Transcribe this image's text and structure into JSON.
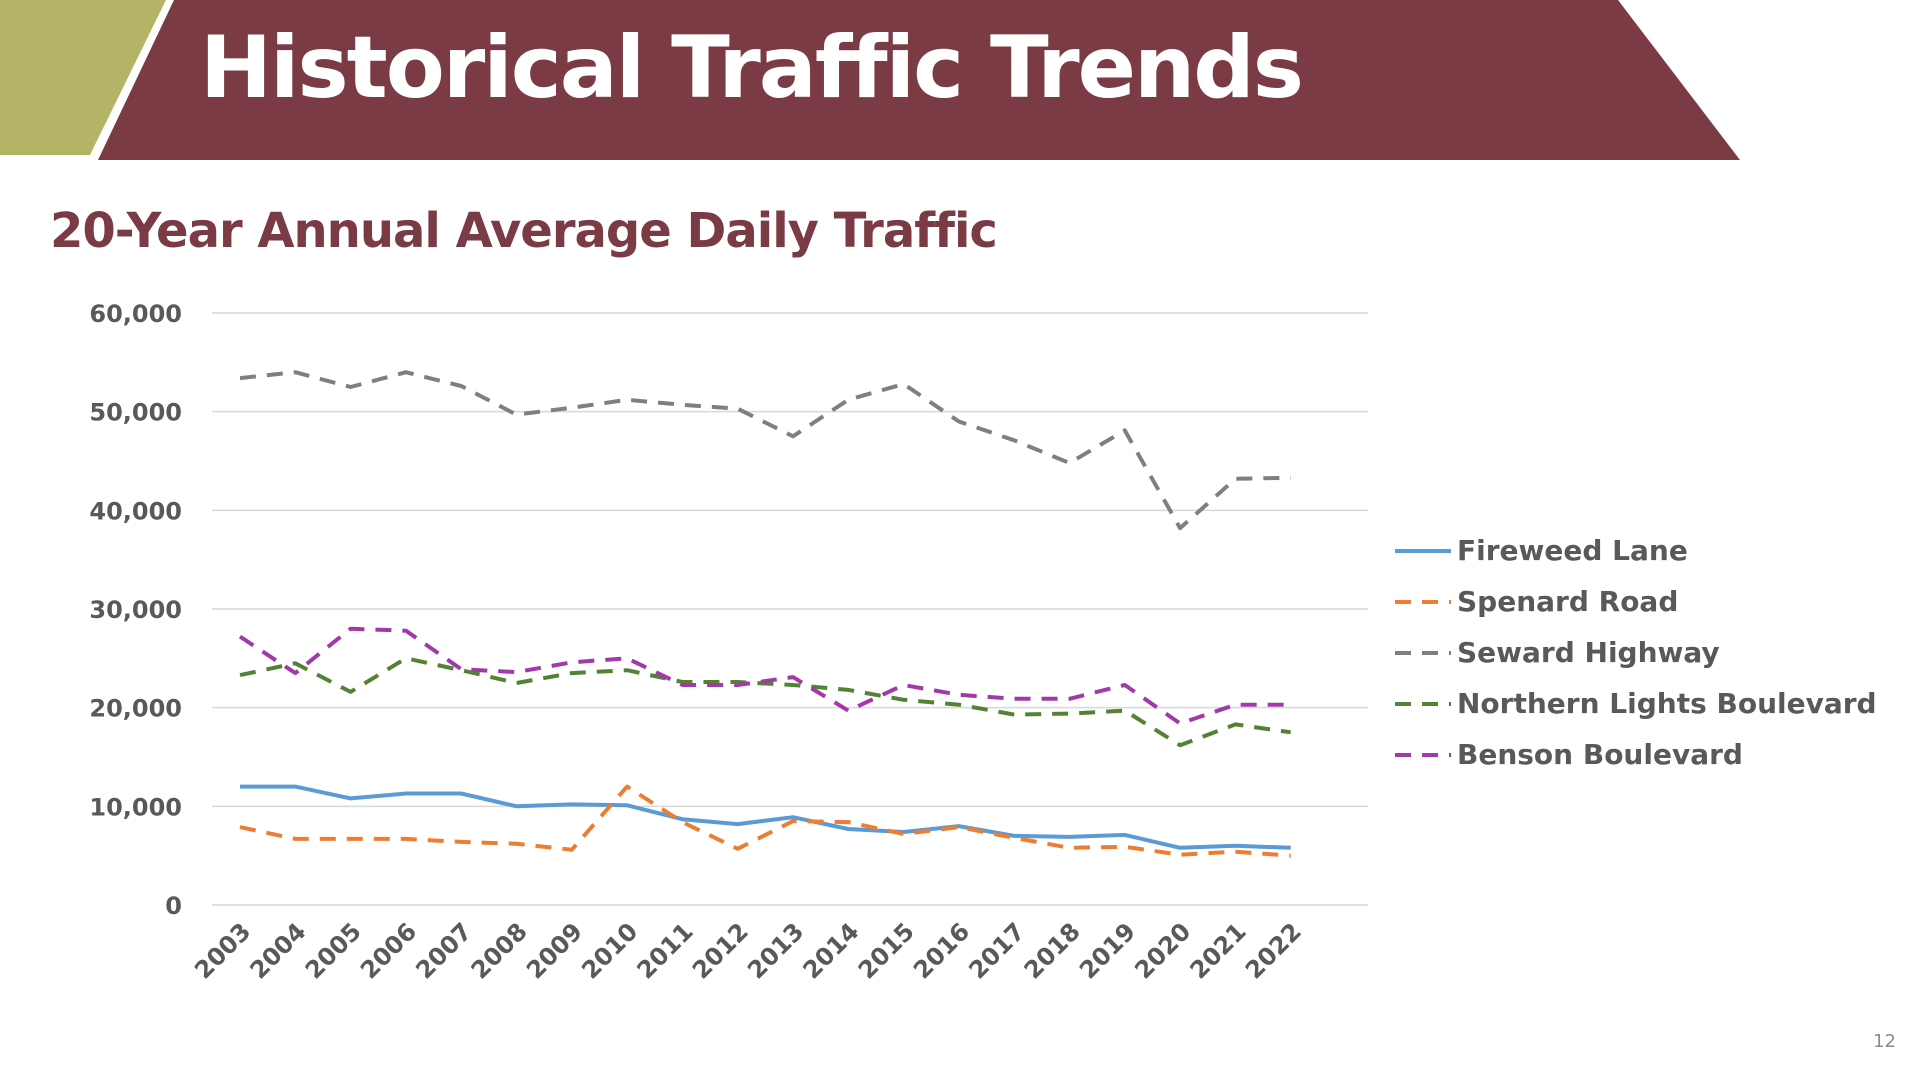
{
  "slide": {
    "title": "Historical Traffic Trends",
    "page_number": "12"
  },
  "colors": {
    "title_band": "#7a3b45",
    "accent_band": "#b5b466",
    "heading_text": "#7a3b45",
    "gridline": "#d9d9d9",
    "axis_text": "#595959"
  },
  "chart_data": {
    "type": "line",
    "title": "20-Year Annual Average Daily Traffic",
    "xlabel": "",
    "ylabel": "",
    "ylim": [
      0,
      60000
    ],
    "yticks": [
      0,
      10000,
      20000,
      30000,
      40000,
      50000,
      60000
    ],
    "ytick_labels": [
      "0",
      "10,000",
      "20,000",
      "30,000",
      "40,000",
      "50,000",
      "60,000"
    ],
    "grid": true,
    "legend_position": "right",
    "x": [
      "2003",
      "2004",
      "2005",
      "2006",
      "2007",
      "2008",
      "2009",
      "2010",
      "2011",
      "2012",
      "2013",
      "2014",
      "2015",
      "2016",
      "2017",
      "2018",
      "2019",
      "2020",
      "2021",
      "2022"
    ],
    "series": [
      {
        "name": "Fireweed Lane",
        "color": "#5b9bd5",
        "dash": "solid",
        "values": [
          12000,
          12000,
          10800,
          11300,
          11300,
          10000,
          10200,
          10100,
          8700,
          8200,
          8900,
          7700,
          7400,
          8000,
          7000,
          6900,
          7100,
          5800,
          6000,
          5800
        ]
      },
      {
        "name": "Spenard Road",
        "color": "#ed7d31",
        "dash": "dashed",
        "values": [
          7900,
          6700,
          6700,
          6700,
          6400,
          6200,
          5600,
          12000,
          8400,
          5700,
          8500,
          8400,
          7200,
          7900,
          6800,
          5800,
          5900,
          5100,
          5400,
          5000
        ]
      },
      {
        "name": "Seward Highway",
        "color": "#7f7f7f",
        "dash": "dashed",
        "values": [
          53400,
          54000,
          52500,
          54000,
          52600,
          49700,
          50400,
          51200,
          50700,
          50300,
          47500,
          51200,
          52800,
          49000,
          47100,
          44800,
          48100,
          38200,
          43200,
          43300
        ]
      },
      {
        "name": "Northern Lights Boulevard",
        "color": "#548235",
        "dash": "dashed",
        "values": [
          23300,
          24500,
          21600,
          25000,
          23800,
          22500,
          23500,
          23800,
          22600,
          22600,
          22300,
          21800,
          20800,
          20300,
          19300,
          19400,
          19700,
          16200,
          18300,
          17500
        ]
      },
      {
        "name": "Benson Boulevard",
        "color": "#a239a8",
        "dash": "dashed",
        "values": [
          27200,
          23500,
          28000,
          27800,
          23900,
          23600,
          24600,
          25000,
          22300,
          22300,
          23100,
          19700,
          22300,
          21300,
          20900,
          20900,
          22300,
          18400,
          20300,
          20300
        ]
      }
    ]
  }
}
